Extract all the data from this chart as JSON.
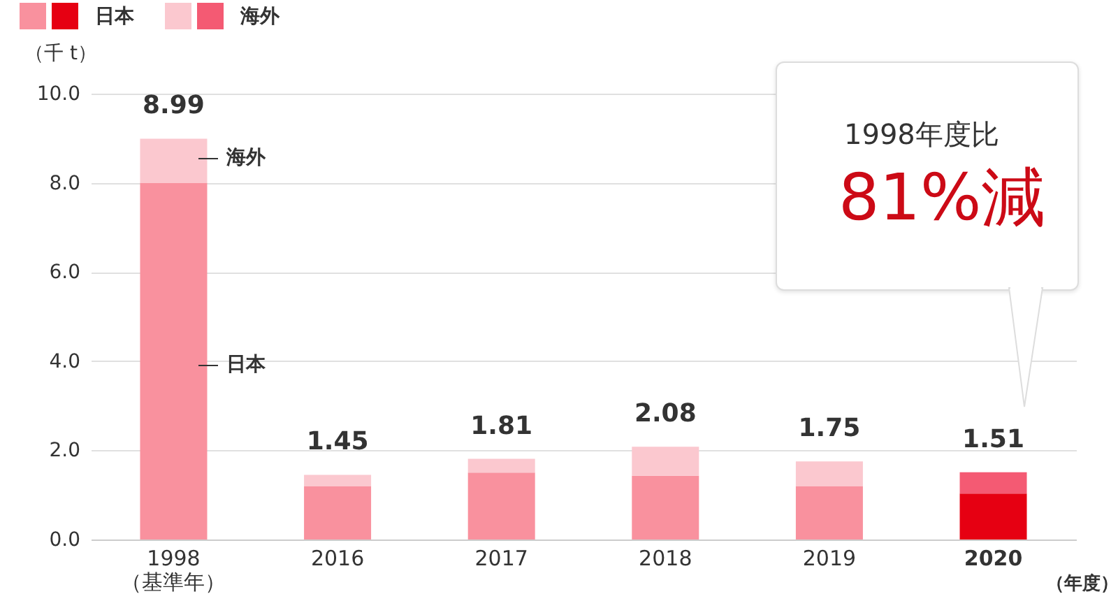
{
  "chart_data": {
    "type": "bar",
    "stacked": true,
    "categories": [
      "1998\n（基準年）",
      "2016",
      "2017",
      "2018",
      "2019",
      "2020"
    ],
    "series": [
      {
        "name": "日本",
        "color": "#f9919e",
        "colors": [
          "#f9919e",
          "#f9919e",
          "#f9919e",
          "#f9919e",
          "#f9919e",
          "#e60012"
        ],
        "values": [
          8.0,
          1.2,
          1.5,
          1.43,
          1.2,
          1.03
        ]
      },
      {
        "name": "海外",
        "color": "#fbc8cf",
        "colors": [
          "#fbc8cf",
          "#fbc8cf",
          "#fbc8cf",
          "#fbc8cf",
          "#fbc8cf",
          "#f45a73"
        ],
        "values": [
          0.99,
          0.25,
          0.31,
          0.65,
          0.55,
          0.48
        ]
      }
    ],
    "totals": [
      "8.99",
      "1.45",
      "1.81",
      "2.08",
      "1.75",
      "1.51"
    ],
    "ylabel": "（千 t）",
    "xlabel": "（年度）",
    "ylim": [
      0,
      10
    ],
    "yticks": [
      {
        "value": 0,
        "label": "0.0"
      },
      {
        "value": 2,
        "label": "2.0"
      },
      {
        "value": 4,
        "label": "4.0"
      },
      {
        "value": 6,
        "label": "6.0"
      },
      {
        "value": 8,
        "label": "8.0"
      },
      {
        "value": 10,
        "label": "10.0"
      }
    ],
    "grid": "y",
    "legend": "top left",
    "annotations": [
      "海外",
      "日本",
      "1998年度比",
      "81%減"
    ]
  }
}
